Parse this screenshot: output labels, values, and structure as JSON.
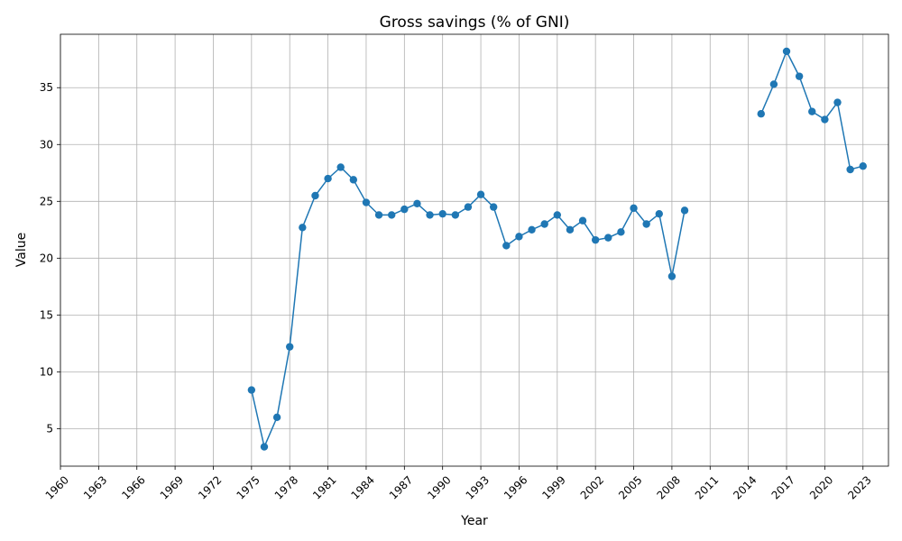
{
  "chart_data": {
    "type": "line",
    "title": "Gross savings (% of GNI)",
    "xlabel": "Year",
    "ylabel": "Value",
    "xlim": [
      1960,
      2025
    ],
    "ylim": [
      1.7,
      39.7
    ],
    "grid": true,
    "x_ticks": [
      1960,
      1963,
      1966,
      1969,
      1972,
      1975,
      1978,
      1981,
      1984,
      1987,
      1990,
      1993,
      1996,
      1999,
      2002,
      2005,
      2008,
      2011,
      2014,
      2017,
      2020,
      2023
    ],
    "y_ticks": [
      5,
      10,
      15,
      20,
      25,
      30,
      35
    ],
    "series": [
      {
        "color": "#1f77b4",
        "segments": [
          {
            "x": [
              1975,
              1976,
              1977,
              1978,
              1979,
              1980,
              1981,
              1982,
              1983,
              1984,
              1985,
              1986,
              1987,
              1988,
              1989,
              1990,
              1991,
              1992,
              1993,
              1994,
              1995,
              1996,
              1997,
              1998,
              1999,
              2000,
              2001,
              2002,
              2003,
              2004,
              2005,
              2006,
              2007,
              2008,
              2009
            ],
            "y": [
              8.4,
              3.4,
              6.0,
              12.2,
              22.7,
              25.5,
              27.0,
              28.0,
              26.9,
              24.9,
              23.8,
              23.8,
              24.3,
              24.8,
              23.8,
              23.9,
              23.8,
              24.5,
              25.6,
              24.5,
              21.1,
              21.9,
              22.5,
              23.0,
              23.8,
              22.5,
              23.3,
              21.6,
              21.8,
              22.3,
              24.4,
              23.0,
              23.9,
              18.4,
              24.2
            ]
          },
          {
            "x": [
              2015,
              2016,
              2017,
              2018,
              2019,
              2020,
              2021,
              2022,
              2023
            ],
            "y": [
              32.7,
              35.3,
              38.2,
              36.0,
              32.9,
              32.2,
              33.7,
              27.8,
              28.1
            ]
          }
        ]
      }
    ]
  }
}
